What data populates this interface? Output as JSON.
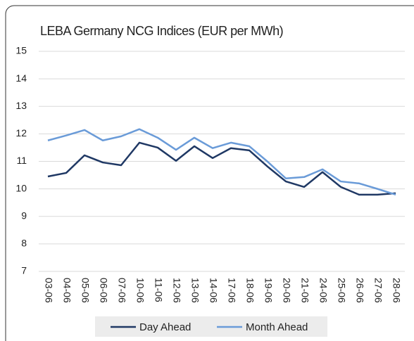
{
  "chart_data": {
    "type": "line",
    "title": "LEBA Germany NCG Indices (EUR per MWh)",
    "categories": [
      "03-06",
      "04-06",
      "05-06",
      "06-06",
      "07-06",
      "10-06",
      "11-06",
      "12-06",
      "13-06",
      "14-06",
      "17-06",
      "18-06",
      "19-06",
      "20-06",
      "21-06",
      "24-06",
      "25-06",
      "26-06",
      "27-06",
      "28-06"
    ],
    "series": [
      {
        "name": "Day Ahead",
        "color": "#1f3864",
        "values": [
          10.45,
          10.58,
          11.22,
          10.96,
          10.86,
          11.68,
          11.5,
          11.02,
          11.55,
          11.12,
          11.48,
          11.4,
          10.81,
          10.27,
          10.07,
          10.61,
          10.07,
          9.79,
          9.79,
          9.84
        ]
      },
      {
        "name": "Month Ahead",
        "color": "#6a9bd8",
        "values": [
          11.76,
          11.94,
          12.14,
          11.76,
          11.91,
          12.17,
          11.86,
          11.42,
          11.86,
          11.48,
          11.68,
          11.55,
          10.99,
          10.38,
          10.43,
          10.71,
          10.27,
          10.2,
          10.0,
          9.79
        ]
      }
    ],
    "ylim": [
      7,
      15
    ],
    "yticks": [
      7,
      8,
      9,
      10,
      11,
      12,
      13,
      14,
      15
    ],
    "grid": true,
    "legend": "bottom"
  }
}
